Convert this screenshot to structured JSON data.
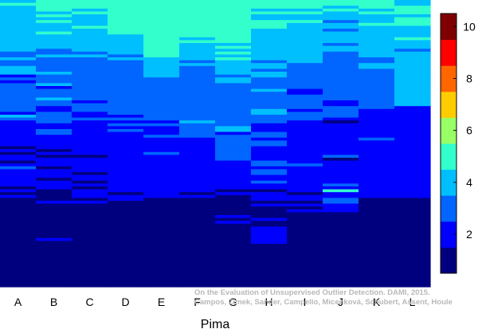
{
  "chart_data": {
    "type": "heatmap",
    "xlabel": "Pima",
    "categories": [
      "A",
      "B",
      "C",
      "D",
      "E",
      "F",
      "G",
      "H",
      "I",
      "J",
      "K",
      "L"
    ],
    "colorbar": {
      "ticks": [
        2,
        4,
        6,
        8,
        10
      ],
      "range": [
        0.5,
        10.5
      ],
      "levels": 10,
      "colors": [
        "#00007f",
        "#0000ff",
        "#0066ff",
        "#00bfff",
        "#33ffcc",
        "#99ff66",
        "#ffcc00",
        "#ff6600",
        "#ff0000",
        "#7f0000"
      ]
    },
    "row_count": 100,
    "row_levels": {
      "A": [
        4,
        5,
        4,
        4,
        4,
        4,
        4,
        4,
        4,
        4,
        4,
        4,
        4,
        4,
        4,
        4,
        4,
        4,
        3,
        3,
        4,
        3,
        3,
        4,
        4,
        4,
        2,
        3,
        2,
        3,
        3,
        3,
        3,
        3,
        3,
        3,
        3,
        3,
        3,
        2,
        4,
        3,
        2,
        2,
        2,
        2,
        2,
        2,
        2,
        2,
        2,
        1,
        2,
        1,
        2,
        2,
        1,
        2,
        3,
        2,
        2,
        2,
        2,
        2,
        2,
        1,
        2,
        1,
        2,
        1,
        1,
        1,
        1,
        1,
        1,
        1,
        1,
        1,
        1,
        1,
        1,
        1,
        1,
        1,
        1,
        1,
        1,
        1,
        1,
        1,
        1,
        1,
        1,
        1,
        1,
        1,
        1,
        1,
        1,
        1
      ],
      "B": [
        5,
        5,
        5,
        5,
        4,
        5,
        4,
        5,
        4,
        4,
        4,
        5,
        4,
        4,
        4,
        4,
        4,
        3,
        3,
        4,
        3,
        3,
        3,
        3,
        3,
        4,
        3,
        3,
        3,
        4,
        2,
        3,
        3,
        3,
        4,
        3,
        3,
        2,
        2,
        3,
        3,
        3,
        3,
        2,
        2,
        3,
        3,
        2,
        2,
        2,
        2,
        2,
        1,
        2,
        1,
        2,
        2,
        2,
        1,
        2,
        2,
        2,
        1,
        2,
        2,
        2,
        1,
        1,
        1,
        1,
        2,
        1,
        1,
        1,
        1,
        1,
        1,
        1,
        1,
        1,
        1,
        1,
        1,
        2,
        1,
        1,
        1,
        1,
        1,
        1,
        1,
        1,
        1,
        1,
        1,
        1,
        1,
        1,
        1,
        1
      ],
      "C": [
        5,
        5,
        5,
        4,
        5,
        4,
        4,
        4,
        4,
        5,
        4,
        4,
        4,
        4,
        4,
        4,
        4,
        4,
        3,
        4,
        3,
        3,
        3,
        3,
        3,
        3,
        3,
        3,
        3,
        3,
        3,
        3,
        3,
        3,
        3,
        2,
        3,
        3,
        3,
        2,
        2,
        3,
        2,
        2,
        2,
        2,
        2,
        2,
        2,
        2,
        2,
        2,
        2,
        2,
        1,
        2,
        2,
        2,
        2,
        2,
        1,
        2,
        2,
        1,
        2,
        1,
        2,
        2,
        2,
        1,
        2,
        1,
        1,
        1,
        1,
        1,
        1,
        1,
        1,
        1,
        1,
        1,
        1,
        1,
        1,
        1,
        1,
        1,
        1,
        1,
        1,
        1,
        1,
        1,
        1,
        1,
        1,
        1,
        1,
        1
      ],
      "D": [
        5,
        5,
        5,
        5,
        5,
        5,
        5,
        5,
        5,
        5,
        5,
        5,
        4,
        4,
        4,
        4,
        4,
        4,
        4,
        3,
        4,
        3,
        3,
        3,
        3,
        3,
        3,
        3,
        3,
        3,
        3,
        3,
        3,
        3,
        3,
        3,
        3,
        3,
        3,
        3,
        2,
        3,
        2,
        3,
        2,
        3,
        2,
        2,
        2,
        2,
        2,
        2,
        2,
        2,
        2,
        2,
        2,
        2,
        2,
        2,
        2,
        2,
        2,
        2,
        2,
        2,
        2,
        1,
        2,
        2,
        1,
        1,
        1,
        1,
        1,
        1,
        1,
        1,
        1,
        1,
        1,
        1,
        1,
        1,
        1,
        1,
        1,
        1,
        1,
        1,
        1,
        1,
        1,
        1,
        1,
        1,
        1,
        1,
        1,
        1
      ],
      "E": [
        5,
        5,
        5,
        5,
        5,
        5,
        5,
        5,
        5,
        5,
        5,
        5,
        5,
        5,
        5,
        5,
        5,
        5,
        5,
        5,
        4,
        4,
        4,
        4,
        4,
        4,
        4,
        3,
        3,
        3,
        3,
        3,
        3,
        3,
        3,
        3,
        3,
        3,
        3,
        3,
        3,
        3,
        2,
        3,
        2,
        2,
        2,
        3,
        2,
        2,
        2,
        2,
        2,
        3,
        2,
        2,
        2,
        2,
        2,
        2,
        2,
        2,
        2,
        2,
        2,
        2,
        2,
        2,
        2,
        1,
        1,
        1,
        1,
        1,
        1,
        1,
        1,
        1,
        1,
        1,
        1,
        1,
        1,
        1,
        1,
        1,
        1,
        1,
        1,
        1,
        1,
        1,
        1,
        1,
        1,
        1,
        1,
        1,
        1,
        1
      ],
      "F": [
        5,
        5,
        5,
        5,
        5,
        5,
        5,
        5,
        5,
        5,
        5,
        5,
        5,
        4,
        5,
        4,
        4,
        4,
        4,
        4,
        4,
        3,
        4,
        3,
        3,
        3,
        3,
        3,
        3,
        3,
        3,
        3,
        3,
        3,
        3,
        3,
        3,
        3,
        3,
        3,
        3,
        3,
        4,
        3,
        3,
        3,
        3,
        3,
        2,
        2,
        2,
        2,
        2,
        2,
        2,
        2,
        2,
        2,
        2,
        2,
        2,
        2,
        2,
        2,
        2,
        2,
        2,
        1,
        2,
        1,
        1,
        1,
        1,
        1,
        1,
        1,
        1,
        1,
        1,
        1,
        1,
        1,
        1,
        1,
        1,
        1,
        1,
        1,
        1,
        1,
        1,
        1,
        1,
        1,
        1,
        1,
        1,
        1,
        1,
        1
      ],
      "G": [
        5,
        5,
        5,
        5,
        5,
        5,
        5,
        5,
        5,
        5,
        5,
        5,
        5,
        5,
        5,
        4,
        5,
        4,
        5,
        4,
        5,
        4,
        4,
        4,
        4,
        4,
        3,
        4,
        4,
        3,
        3,
        3,
        3,
        3,
        3,
        3,
        3,
        3,
        3,
        3,
        3,
        3,
        3,
        3,
        4,
        4,
        2,
        3,
        3,
        3,
        3,
        3,
        3,
        3,
        3,
        3,
        2,
        2,
        2,
        2,
        2,
        2,
        2,
        2,
        2,
        2,
        1,
        2,
        1,
        1,
        1,
        1,
        1,
        1,
        1,
        2,
        1,
        2,
        1,
        1,
        1,
        1,
        1,
        1,
        1,
        1,
        1,
        1,
        1,
        1,
        1,
        1,
        1,
        1,
        1,
        1,
        1,
        1,
        1,
        1
      ],
      "H": [
        5,
        5,
        5,
        4,
        5,
        4,
        4,
        5,
        5,
        5,
        4,
        4,
        4,
        4,
        4,
        4,
        4,
        4,
        4,
        4,
        4,
        3,
        4,
        4,
        3,
        4,
        4,
        3,
        3,
        3,
        3,
        4,
        3,
        3,
        3,
        3,
        3,
        3,
        4,
        4,
        3,
        3,
        3,
        2,
        2,
        2,
        3,
        3,
        2,
        3,
        3,
        2,
        2,
        2,
        2,
        2,
        3,
        3,
        2,
        3,
        3,
        2,
        2,
        3,
        2,
        2,
        1,
        2,
        2,
        2,
        1,
        2,
        1,
        1,
        1,
        1,
        2,
        1,
        1,
        2,
        2,
        2,
        2,
        2,
        2,
        1,
        1,
        1,
        1,
        1,
        1,
        1,
        1,
        1,
        1,
        1,
        1,
        1,
        1,
        1
      ],
      "I": [
        5,
        5,
        5,
        4,
        5,
        4,
        4,
        5,
        4,
        4,
        4,
        4,
        4,
        4,
        4,
        4,
        4,
        4,
        4,
        4,
        4,
        4,
        3,
        3,
        3,
        3,
        3,
        3,
        3,
        3,
        3,
        2,
        2,
        3,
        3,
        3,
        3,
        3,
        2,
        3,
        3,
        3,
        2,
        2,
        2,
        2,
        2,
        2,
        2,
        2,
        2,
        2,
        2,
        2,
        2,
        2,
        2,
        3,
        2,
        2,
        2,
        2,
        2,
        2,
        2,
        2,
        2,
        1,
        2,
        2,
        1,
        2,
        1,
        2,
        1,
        1,
        1,
        1,
        1,
        1,
        1,
        1,
        1,
        1,
        1,
        1,
        1,
        1,
        1,
        1,
        1,
        1,
        1,
        1,
        1,
        1,
        1,
        1,
        1,
        1
      ],
      "J": [
        5,
        5,
        4,
        5,
        4,
        4,
        4,
        3,
        4,
        4,
        3,
        4,
        4,
        4,
        4,
        3,
        4,
        4,
        3,
        3,
        3,
        3,
        3,
        3,
        3,
        3,
        3,
        3,
        3,
        3,
        3,
        3,
        3,
        3,
        3,
        2,
        2,
        3,
        3,
        3,
        3,
        2,
        1,
        2,
        2,
        2,
        2,
        2,
        2,
        2,
        2,
        2,
        2,
        2,
        3,
        1,
        2,
        2,
        2,
        2,
        2,
        2,
        2,
        2,
        3,
        2,
        5,
        2,
        2,
        3,
        3,
        2,
        2,
        2,
        1,
        1,
        1,
        1,
        1,
        1,
        1,
        1,
        1,
        1,
        1,
        1,
        1,
        1,
        1,
        1,
        1,
        1,
        1,
        1,
        1,
        1,
        1,
        1,
        1,
        1
      ],
      "K": [
        5,
        5,
        5,
        4,
        5,
        4,
        4,
        4,
        5,
        4,
        4,
        4,
        4,
        4,
        4,
        4,
        4,
        4,
        4,
        4,
        3,
        3,
        4,
        4,
        3,
        3,
        3,
        3,
        3,
        3,
        3,
        3,
        3,
        3,
        3,
        3,
        3,
        3,
        2,
        2,
        2,
        2,
        2,
        2,
        2,
        2,
        2,
        2,
        3,
        2,
        2,
        2,
        2,
        2,
        2,
        2,
        2,
        2,
        2,
        2,
        2,
        2,
        2,
        2,
        2,
        2,
        2,
        2,
        2,
        1,
        1,
        1,
        1,
        1,
        1,
        1,
        1,
        1,
        1,
        1,
        1,
        1,
        1,
        1,
        1,
        1,
        1,
        1,
        1,
        1,
        1,
        1,
        1,
        1,
        1,
        1,
        1,
        1,
        1,
        1
      ],
      "L": [
        4,
        4,
        5,
        5,
        5,
        4,
        5,
        5,
        5,
        4,
        4,
        4,
        4,
        5,
        4,
        4,
        4,
        3,
        4,
        4,
        4,
        4,
        4,
        4,
        4,
        4,
        4,
        4,
        4,
        4,
        4,
        4,
        4,
        4,
        4,
        4,
        4,
        2,
        2,
        2,
        2,
        2,
        2,
        2,
        2,
        2,
        2,
        2,
        2,
        2,
        2,
        2,
        2,
        2,
        2,
        2,
        2,
        2,
        2,
        2,
        2,
        2,
        2,
        2,
        2,
        2,
        2,
        2,
        2,
        1,
        1,
        1,
        1,
        1,
        1,
        1,
        1,
        1,
        1,
        1,
        1,
        1,
        1,
        1,
        1,
        1,
        1,
        1,
        1,
        1,
        1,
        1,
        1,
        1,
        1,
        1,
        1,
        1,
        1,
        1
      ]
    }
  },
  "watermark": {
    "line1": "On the Evaluation of Unsupervised Outlier Detection. DAMI, 2015.",
    "line2": "Campos, Zimek, Sander, Campello, Micenková, Schubert, Assent, Houle"
  }
}
